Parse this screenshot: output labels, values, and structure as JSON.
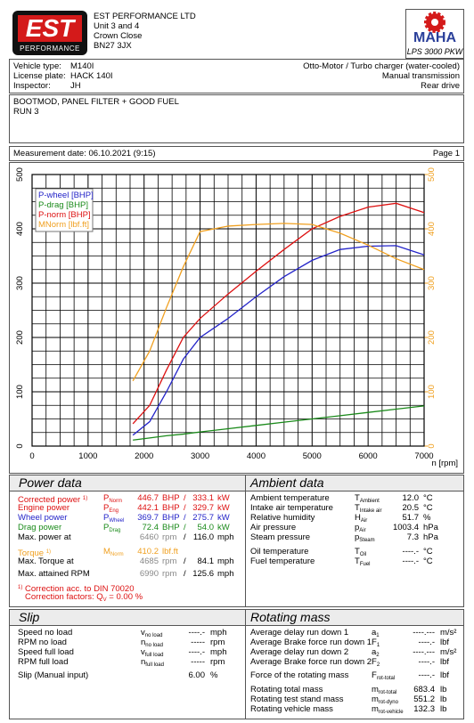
{
  "header": {
    "logo_text": "EST",
    "logo_sub": "PERFORMANCE",
    "company": "EST PERFORMANCE LTD",
    "address": [
      "Unit 3 and 4",
      "Crown Close",
      "BN27 3JX"
    ],
    "brand": "MAHA",
    "model": "LPS 3000 PKW"
  },
  "vehicle": {
    "rows": [
      [
        "Vehicle type:",
        "M140I"
      ],
      [
        "License plate:",
        "HACK 140I"
      ],
      [
        "Inspector:",
        "JH"
      ]
    ],
    "info": [
      "Otto-Motor / Turbo charger (water-cooled)",
      "Manual transmission",
      "Rear drive"
    ]
  },
  "comment": [
    "BOOTMOD, PANEL FILTER + GOOD FUEL",
    "RUN 3"
  ],
  "measurement": {
    "date": "Measurement date: 06.10.2021 (9:15)",
    "page": "Page 1"
  },
  "chart_data": {
    "type": "line",
    "x": [
      1800,
      2100,
      2400,
      2700,
      3000,
      3500,
      4000,
      4500,
      5000,
      5500,
      6000,
      6500,
      7000
    ],
    "series": [
      {
        "name": "P-wheel [BHP]",
        "color": "#2323c8",
        "values": [
          20,
          45,
          100,
          160,
          200,
          235,
          275,
          312,
          342,
          362,
          368,
          369,
          352
        ]
      },
      {
        "name": "P-drag [BHP]",
        "color": "#1a8a1a",
        "values": [
          11,
          15,
          19,
          22,
          26,
          32,
          38,
          44,
          50,
          56,
          62,
          68,
          74
        ]
      },
      {
        "name": "P-norm [BHP]",
        "color": "#dd1111",
        "values": [
          41,
          75,
          140,
          200,
          235,
          280,
          322,
          362,
          400,
          423,
          440,
          447,
          430
        ]
      },
      {
        "name": "MNorm [lbf.ft]",
        "color": "#f0a020",
        "axis": "y2",
        "values": [
          120,
          175,
          255,
          330,
          395,
          405,
          408,
          410,
          408,
          392,
          370,
          345,
          325
        ]
      }
    ],
    "xlim": [
      0,
      7000
    ],
    "xticks": [
      0,
      1000,
      2000,
      3000,
      4000,
      5000,
      6000,
      7000
    ],
    "xlabel": "n [rpm]",
    "ylim": [
      0,
      500
    ],
    "yticks": [
      0,
      100,
      200,
      300,
      400,
      500
    ],
    "y2lim": [
      0,
      500
    ],
    "y2ticks": [
      0,
      100,
      200,
      300,
      400,
      500
    ],
    "grid": true,
    "legend": "upper left"
  },
  "power_data": {
    "title": "Power data",
    "rows": [
      {
        "label": "Corrected power",
        "note": "1)",
        "color": "#dd1111",
        "symbol": "P",
        "sub": "Norm",
        "v1": "446.7",
        "u1": "BHP",
        "sep": "/",
        "v2": "333.1",
        "u2": "kW"
      },
      {
        "label": "Engine power",
        "color": "#dd1111",
        "symbol": "P",
        "sub": "Eng",
        "v1": "442.1",
        "u1": "BHP",
        "sep": "/",
        "v2": "329.7",
        "u2": "kW"
      },
      {
        "label": "Wheel power",
        "color": "#2323c8",
        "symbol": "P",
        "sub": "Wheel",
        "v1": "369.7",
        "u1": "BHP",
        "sep": "/",
        "v2": "275.7",
        "u2": "kW"
      },
      {
        "label": "Drag power",
        "color": "#1a8a1a",
        "symbol": "P",
        "sub": "Drag",
        "v1": "72.4",
        "u1": "BHP",
        "sep": "/",
        "v2": "54.0",
        "u2": "kW"
      },
      {
        "label": "Max. power at",
        "v1": "6460",
        "u1": "rpm",
        "sep": "/",
        "v2": "116.0",
        "u2": "mph"
      },
      {
        "label": "Torque",
        "note": "1)",
        "color": "#f0a020",
        "symbol": "M",
        "sub": "Norm",
        "v1": "410.2",
        "u1": "lbf.ft"
      },
      {
        "label": "Max. Torque at",
        "v1": "4685",
        "u1": "rpm",
        "sep": "/",
        "v2": "84.1",
        "u2": "mph"
      },
      {
        "label": "Max. attained RPM",
        "v1": "6990",
        "u1": "rpm",
        "sep": "/",
        "v2": "125.6",
        "u2": "mph"
      }
    ],
    "footnote_note": "1)",
    "footnote": "Correction acc. to DIN 70020",
    "factor_label": "Correction factors: Q",
    "factor_sub": "V",
    "factor_value": "=  0.00 %"
  },
  "ambient_data": {
    "title": "Ambient data",
    "rows": [
      {
        "label": "Ambient temperature",
        "symbol": "T",
        "sub": "Ambient",
        "v1": "12.0",
        "u1": "°C"
      },
      {
        "label": "Intake air temperature",
        "symbol": "T",
        "sub": "Intake air",
        "v1": "20.5",
        "u1": "°C"
      },
      {
        "label": "Relative humidity",
        "symbol": "H",
        "sub": "Air",
        "v1": "51.7",
        "u1": "%"
      },
      {
        "label": "Air pressure",
        "symbol": "p",
        "sub": "Air",
        "v1": "1003.4",
        "u1": "hPa"
      },
      {
        "label": "Steam pressure",
        "symbol": "p",
        "sub": "Steam",
        "v1": "7.3",
        "u1": "hPa"
      },
      {
        "label": "Oil temperature",
        "symbol": "T",
        "sub": "Oil",
        "v1": "----.-",
        "u1": "°C"
      },
      {
        "label": "Fuel temperature",
        "symbol": "T",
        "sub": "Fuel",
        "v1": "----.-",
        "u1": "°C"
      }
    ]
  },
  "slip": {
    "title": "Slip",
    "rows": [
      {
        "label": "Speed no load",
        "symbol": "v",
        "sub": "no load",
        "v1": "----.-",
        "u1": "mph"
      },
      {
        "label": "RPM no load",
        "symbol": "n",
        "sub": "no load",
        "v1": "-----",
        "u1": "rpm"
      },
      {
        "label": "Speed full load",
        "symbol": "v",
        "sub": "full load",
        "v1": "----.-",
        "u1": "mph"
      },
      {
        "label": "RPM full load",
        "symbol": "n",
        "sub": "full load",
        "v1": "-----",
        "u1": "rpm"
      },
      {
        "label": "Slip (Manual input)",
        "v1": "6.00",
        "u1": "%"
      }
    ]
  },
  "rotating_mass": {
    "title": "Rotating mass",
    "rows": [
      {
        "label": "Average delay run down 1",
        "symbol": "a",
        "sub": "1",
        "v1": "----.---",
        "u1": "m/s²"
      },
      {
        "label": "Average Brake force run down 1",
        "symbol": "F",
        "sub": "1",
        "v1": "----.-",
        "u1": "lbf"
      },
      {
        "label": "Average delay run down 2",
        "symbol": "a",
        "sub": "2",
        "v1": "----.---",
        "u1": "m/s²"
      },
      {
        "label": "Average Brake force run down 2",
        "symbol": "F",
        "sub": "2",
        "v1": "----.-",
        "u1": "lbf"
      },
      {
        "label": "Force of the rotating mass",
        "symbol": "F",
        "sub": "rot-total",
        "v1": "----.-",
        "u1": "lbf"
      },
      {
        "label": "Rotating total mass",
        "symbol": "m",
        "sub": "rot-total",
        "v1": "683.4",
        "u1": "lb"
      },
      {
        "label": "Rotating test stand mass",
        "symbol": "m",
        "sub": "rot-dyno",
        "v1": "551.2",
        "u1": "lb"
      },
      {
        "label": "Rotating vehicle mass",
        "symbol": "m",
        "sub": "rot-vehicle",
        "v1": "132.3",
        "u1": "lb"
      }
    ]
  }
}
